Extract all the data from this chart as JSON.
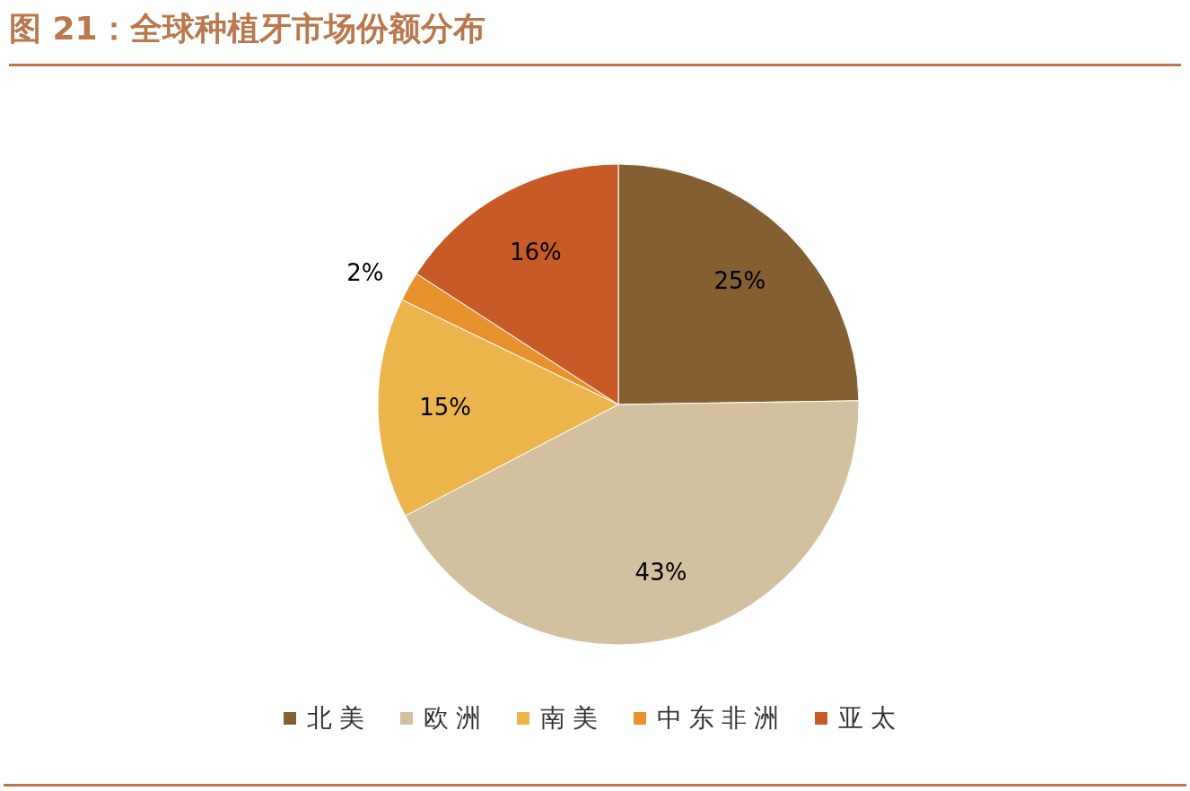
{
  "chart_data": {
    "type": "pie",
    "title": "图 21：全球种植牙市场份额分布",
    "categories": [
      "北美",
      "欧洲",
      "南美",
      "中东非洲",
      "亚太"
    ],
    "values": [
      25,
      43,
      15,
      2,
      16
    ],
    "colors": [
      "#845f32",
      "#d2c09f",
      "#ebb54c",
      "#e8922e",
      "#c85a27"
    ],
    "value_labels": [
      "25%",
      "43%",
      "15%",
      "2%",
      "16%"
    ],
    "legend": "bottom"
  }
}
